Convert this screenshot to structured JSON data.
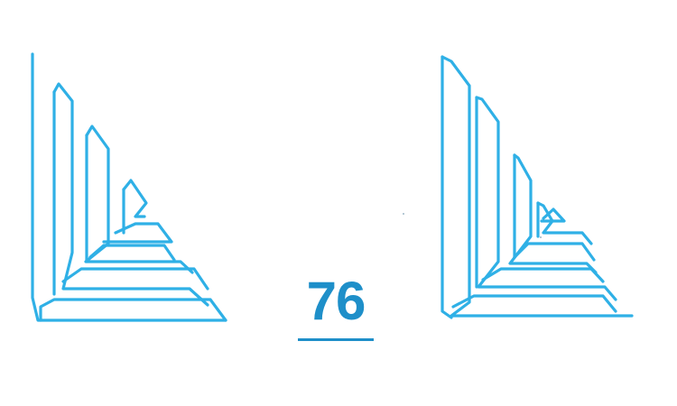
{
  "colors": {
    "figure_stroke": "#2fb0e6",
    "page_number": "#1e8fc9",
    "underline": "#1e8fc9",
    "background": "#ffffff"
  },
  "figures": [
    {
      "name": "left-triangle-figure",
      "style": "nested right-angle steps with horizontal bars"
    },
    {
      "name": "right-triangle-figure",
      "style": "nested right-angle steps with horizontal bars"
    }
  ],
  "page_number": {
    "text": "76",
    "underlined": true
  }
}
